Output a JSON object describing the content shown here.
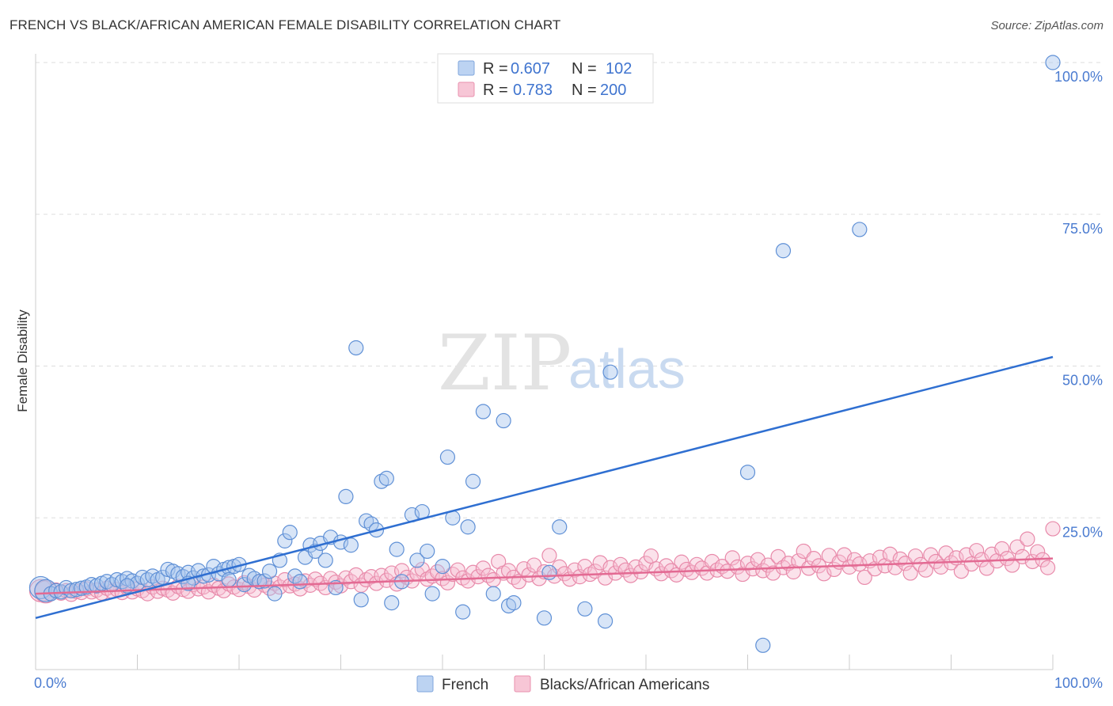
{
  "title": "FRENCH VS BLACK/AFRICAN AMERICAN FEMALE DISABILITY CORRELATION CHART",
  "source": "Source: ZipAtlas.com",
  "watermark": {
    "zip": "ZIP",
    "atlas": "atlas"
  },
  "legend": {
    "r_label": "R =",
    "n_label": "N =",
    "series": [
      {
        "r": "0.607",
        "n": "102"
      },
      {
        "r": "0.783",
        "n": "200"
      }
    ]
  },
  "chart_data": {
    "type": "scatter",
    "xlabel": "",
    "ylabel": "Female Disability",
    "xlim": [
      0,
      100
    ],
    "ylim": [
      0,
      100
    ],
    "x_tick_labels": [
      "0.0%",
      "100.0%"
    ],
    "y_ticks": [
      25,
      50,
      75,
      100
    ],
    "y_tick_labels": [
      "25.0%",
      "50.0%",
      "75.0%",
      "100.0%"
    ],
    "grid": true,
    "colors": {
      "French": "#6f9fe0",
      "Blacks/African Americans": "#ef8fb0",
      "french_line": "#2f6fd1",
      "black_line": "#e36a93"
    },
    "series": [
      {
        "name": "French",
        "trend": {
          "x": [
            0,
            100
          ],
          "y": [
            8.5,
            51.5
          ]
        },
        "points": [
          [
            0.5,
            13.5
          ],
          [
            1,
            13
          ],
          [
            1.5,
            12.5
          ],
          [
            2,
            13
          ],
          [
            2.5,
            12.8
          ],
          [
            3,
            13.5
          ],
          [
            3.5,
            13
          ],
          [
            4,
            13.2
          ],
          [
            4.5,
            13.4
          ],
          [
            5,
            13.6
          ],
          [
            5.5,
            14
          ],
          [
            6,
            13.8
          ],
          [
            6.5,
            14.2
          ],
          [
            7,
            14.5
          ],
          [
            7.5,
            14
          ],
          [
            8,
            14.8
          ],
          [
            8.5,
            14.5
          ],
          [
            9,
            15
          ],
          [
            9.5,
            14.6
          ],
          [
            10,
            14.2
          ],
          [
            10.5,
            15.2
          ],
          [
            11,
            14.8
          ],
          [
            11.5,
            15.4
          ],
          [
            12,
            14.8
          ],
          [
            12.5,
            15.2
          ],
          [
            13,
            16.5
          ],
          [
            13.5,
            16.2
          ],
          [
            14,
            15.8
          ],
          [
            14.5,
            15.3
          ],
          [
            15,
            16
          ],
          [
            15.5,
            15.1
          ],
          [
            16,
            16.3
          ],
          [
            16.5,
            15.4
          ],
          [
            17,
            15.6
          ],
          [
            17.5,
            17
          ],
          [
            18,
            15.8
          ],
          [
            18.5,
            16.5
          ],
          [
            19,
            16.8
          ],
          [
            19.5,
            17
          ],
          [
            20,
            17.3
          ],
          [
            20.5,
            14
          ],
          [
            21,
            15.5
          ],
          [
            21.5,
            15
          ],
          [
            22,
            14.5
          ],
          [
            22.5,
            14.6
          ],
          [
            23,
            16.2
          ],
          [
            23.5,
            12.5
          ],
          [
            24,
            18
          ],
          [
            24.5,
            21.2
          ],
          [
            25,
            22.6
          ],
          [
            25.5,
            15.4
          ],
          [
            26,
            14.5
          ],
          [
            26.5,
            18.5
          ],
          [
            27,
            20.5
          ],
          [
            27.5,
            19.5
          ],
          [
            28,
            20.8
          ],
          [
            28.5,
            18
          ],
          [
            29,
            21.8
          ],
          [
            29.5,
            13.5
          ],
          [
            30,
            21
          ],
          [
            30.5,
            28.5
          ],
          [
            31,
            20.5
          ],
          [
            31.5,
            53
          ],
          [
            32,
            11.5
          ],
          [
            32.5,
            24.5
          ],
          [
            33,
            24
          ],
          [
            33.5,
            23
          ],
          [
            34,
            31
          ],
          [
            34.5,
            31.5
          ],
          [
            35,
            11
          ],
          [
            35.5,
            19.8
          ],
          [
            36,
            14.5
          ],
          [
            37,
            25.5
          ],
          [
            37.5,
            18
          ],
          [
            38,
            26
          ],
          [
            38.5,
            19.5
          ],
          [
            39,
            12.5
          ],
          [
            40,
            17
          ],
          [
            40.5,
            35
          ],
          [
            41,
            25
          ],
          [
            42,
            9.5
          ],
          [
            42.5,
            23.5
          ],
          [
            43,
            31
          ],
          [
            44,
            42.5
          ],
          [
            45,
            12.5
          ],
          [
            46,
            41
          ],
          [
            46.5,
            10.5
          ],
          [
            47,
            11
          ],
          [
            50,
            8.5
          ],
          [
            50.5,
            16
          ],
          [
            51.5,
            23.5
          ],
          [
            54,
            10
          ],
          [
            56,
            8
          ],
          [
            56.5,
            49
          ],
          [
            70,
            32.5
          ],
          [
            71.5,
            4
          ],
          [
            73.5,
            69
          ],
          [
            81,
            72.5
          ],
          [
            100,
            100
          ],
          [
            15,
            14.2
          ],
          [
            9,
            13.8
          ],
          [
            19,
            14.8
          ]
        ]
      },
      {
        "name": "Blacks/African Americans",
        "trend": {
          "x": [
            0,
            100
          ],
          "y": [
            12.5,
            18.3
          ]
        },
        "points": [
          [
            0.5,
            13
          ],
          [
            1,
            12.8
          ],
          [
            1.5,
            12.5
          ],
          [
            2,
            13.1
          ],
          [
            2.5,
            12.6
          ],
          [
            3,
            13
          ],
          [
            3.5,
            12.4
          ],
          [
            4,
            12.9
          ],
          [
            4.5,
            12.7
          ],
          [
            5,
            13.3
          ],
          [
            5.5,
            12.8
          ],
          [
            6,
            13.1
          ],
          [
            6.5,
            12.6
          ],
          [
            7,
            13.4
          ],
          [
            7.5,
            12.9
          ],
          [
            8,
            13.2
          ],
          [
            8.5,
            12.7
          ],
          [
            9,
            13.5
          ],
          [
            9.5,
            12.8
          ],
          [
            10,
            13.3
          ],
          [
            10.5,
            13
          ],
          [
            11,
            12.5
          ],
          [
            11.5,
            13.6
          ],
          [
            12,
            12.9
          ],
          [
            12.5,
            13.4
          ],
          [
            13,
            13.1
          ],
          [
            13.5,
            12.6
          ],
          [
            14,
            13.7
          ],
          [
            14.5,
            13.2
          ],
          [
            15,
            12.9
          ],
          [
            15.5,
            14
          ],
          [
            16,
            13.3
          ],
          [
            16.5,
            13.6
          ],
          [
            17,
            12.8
          ],
          [
            17.5,
            13.9
          ],
          [
            18,
            13.4
          ],
          [
            18.5,
            13
          ],
          [
            19,
            14.1
          ],
          [
            19.5,
            13.6
          ],
          [
            20,
            13.2
          ],
          [
            20.5,
            14.3
          ],
          [
            21,
            13.7
          ],
          [
            21.5,
            13.1
          ],
          [
            22,
            14.5
          ],
          [
            22.5,
            13.9
          ],
          [
            23,
            13.4
          ],
          [
            23.5,
            14.2
          ],
          [
            24,
            13.6
          ],
          [
            24.5,
            14.8
          ],
          [
            25,
            13.8
          ],
          [
            25.5,
            14.1
          ],
          [
            26,
            13.3
          ],
          [
            26.5,
            14.6
          ],
          [
            27,
            13.9
          ],
          [
            27.5,
            14.9
          ],
          [
            28,
            14.2
          ],
          [
            28.5,
            13.5
          ],
          [
            29,
            15
          ],
          [
            29.5,
            14.4
          ],
          [
            30,
            13.8
          ],
          [
            30.5,
            15.1
          ],
          [
            31,
            14.5
          ],
          [
            31.5,
            15.6
          ],
          [
            32,
            13.9
          ],
          [
            32.5,
            14.8
          ],
          [
            33,
            15.3
          ],
          [
            33.5,
            14.2
          ],
          [
            34,
            15.5
          ],
          [
            34.5,
            14.7
          ],
          [
            35,
            15.9
          ],
          [
            35.5,
            14.1
          ],
          [
            36,
            16.3
          ],
          [
            36.5,
            15.2
          ],
          [
            37,
            14.6
          ],
          [
            37.5,
            15.8
          ],
          [
            38,
            16.5
          ],
          [
            38.5,
            14.9
          ],
          [
            39,
            15.4
          ],
          [
            39.5,
            16.1
          ],
          [
            40,
            15
          ],
          [
            40.5,
            14.3
          ],
          [
            41,
            15.7
          ],
          [
            41.5,
            16.4
          ],
          [
            42,
            15.1
          ],
          [
            42.5,
            14.6
          ],
          [
            43,
            16
          ],
          [
            43.5,
            15.3
          ],
          [
            44,
            16.7
          ],
          [
            44.5,
            15.5
          ],
          [
            45,
            14.8
          ],
          [
            45.5,
            17.8
          ],
          [
            46,
            15.9
          ],
          [
            46.5,
            16.3
          ],
          [
            47,
            15.2
          ],
          [
            47.5,
            14.5
          ],
          [
            48,
            16.6
          ],
          [
            48.5,
            15.6
          ],
          [
            49,
            17.2
          ],
          [
            49.5,
            15
          ],
          [
            50,
            16.1
          ],
          [
            50.5,
            18.8
          ],
          [
            51,
            15.4
          ],
          [
            51.5,
            16.9
          ],
          [
            52,
            15.8
          ],
          [
            52.5,
            14.9
          ],
          [
            53,
            16.4
          ],
          [
            53.5,
            15.3
          ],
          [
            54,
            17
          ],
          [
            54.5,
            15.7
          ],
          [
            55,
            16.2
          ],
          [
            55.5,
            17.6
          ],
          [
            56,
            15.1
          ],
          [
            56.5,
            16.8
          ],
          [
            57,
            15.9
          ],
          [
            57.5,
            17.3
          ],
          [
            58,
            16.4
          ],
          [
            58.5,
            15.5
          ],
          [
            59,
            16.9
          ],
          [
            59.5,
            16.1
          ],
          [
            60,
            17.5
          ],
          [
            60.5,
            18.7
          ],
          [
            61,
            16.6
          ],
          [
            61.5,
            15.8
          ],
          [
            62,
            17.1
          ],
          [
            62.5,
            16.3
          ],
          [
            63,
            15.6
          ],
          [
            63.5,
            17.7
          ],
          [
            64,
            16.5
          ],
          [
            64.5,
            16
          ],
          [
            65,
            17.3
          ],
          [
            65.5,
            16.7
          ],
          [
            66,
            15.9
          ],
          [
            66.5,
            17.8
          ],
          [
            67,
            16.4
          ],
          [
            67.5,
            17
          ],
          [
            68,
            16.2
          ],
          [
            68.5,
            18.4
          ],
          [
            69,
            16.9
          ],
          [
            69.5,
            15.7
          ],
          [
            70,
            17.5
          ],
          [
            70.5,
            16.6
          ],
          [
            71,
            18.1
          ],
          [
            71.5,
            16.3
          ],
          [
            72,
            17.2
          ],
          [
            72.5,
            15.9
          ],
          [
            73,
            18.6
          ],
          [
            73.5,
            16.8
          ],
          [
            74,
            17.5
          ],
          [
            74.5,
            16.1
          ],
          [
            75,
            17.9
          ],
          [
            75.5,
            19.5
          ],
          [
            76,
            16.7
          ],
          [
            76.5,
            18.3
          ],
          [
            77,
            17.1
          ],
          [
            77.5,
            15.8
          ],
          [
            78,
            18.8
          ],
          [
            78.5,
            16.5
          ],
          [
            79,
            17.7
          ],
          [
            79.5,
            18.9
          ],
          [
            80,
            16.9
          ],
          [
            80.5,
            18.1
          ],
          [
            81,
            17.4
          ],
          [
            81.5,
            15.2
          ],
          [
            82,
            17.9
          ],
          [
            82.5,
            16.6
          ],
          [
            83,
            18.5
          ],
          [
            83.5,
            17.1
          ],
          [
            84,
            19
          ],
          [
            84.5,
            16.8
          ],
          [
            85,
            18.2
          ],
          [
            85.5,
            17.5
          ],
          [
            86,
            15.9
          ],
          [
            86.5,
            18.7
          ],
          [
            87,
            17.3
          ],
          [
            87.5,
            16.4
          ],
          [
            88,
            18.9
          ],
          [
            88.5,
            17.8
          ],
          [
            89,
            16.9
          ],
          [
            89.5,
            19.2
          ],
          [
            90,
            17.6
          ],
          [
            90.5,
            18.4
          ],
          [
            91,
            16.2
          ],
          [
            91.5,
            18.9
          ],
          [
            92,
            17.4
          ],
          [
            92.5,
            19.6
          ],
          [
            93,
            18.1
          ],
          [
            93.5,
            16.7
          ],
          [
            94,
            19
          ],
          [
            94.5,
            17.9
          ],
          [
            95,
            19.9
          ],
          [
            95.5,
            18.3
          ],
          [
            96,
            17.2
          ],
          [
            96.5,
            20.2
          ],
          [
            97,
            18.6
          ],
          [
            97.5,
            21.5
          ],
          [
            98,
            17.8
          ],
          [
            98.5,
            19.4
          ],
          [
            99,
            18.1
          ],
          [
            99.5,
            16.8
          ],
          [
            100,
            23.2
          ]
        ]
      }
    ]
  },
  "bottom_legend": [
    {
      "label": "French"
    },
    {
      "label": "Blacks/African Americans"
    }
  ]
}
